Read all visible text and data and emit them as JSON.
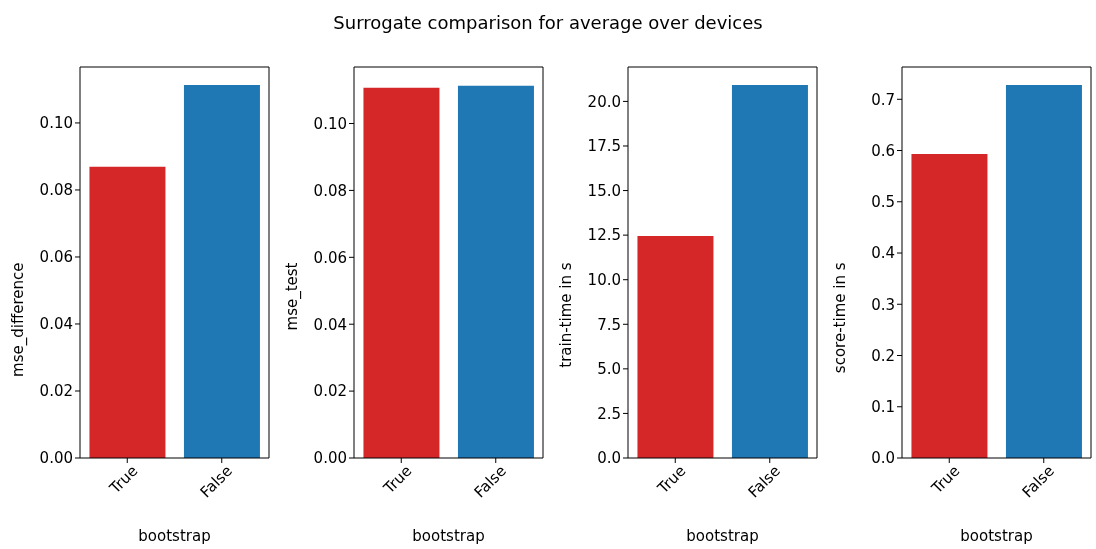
{
  "chart_data": [
    {
      "type": "bar",
      "categories": [
        "True",
        "False"
      ],
      "values": [
        0.0869,
        0.1113
      ],
      "colors": [
        "#d62728",
        "#1f77b4"
      ],
      "xlabel": "bootstrap",
      "ylabel": "mse_difference",
      "ylim": [
        0,
        0.1167
      ],
      "yticks": [
        {
          "value": 0,
          "label": "0.00"
        },
        {
          "value": 0.02,
          "label": "0.02"
        },
        {
          "value": 0.04,
          "label": "0.04"
        },
        {
          "value": 0.06,
          "label": "0.06"
        },
        {
          "value": 0.08,
          "label": "0.08"
        },
        {
          "value": 0.1,
          "label": "0.10"
        }
      ]
    },
    {
      "type": "bar",
      "title": "Surrogate comparison for average over devices",
      "categories": [
        "True",
        "False"
      ],
      "values": [
        0.1107,
        0.1113
      ],
      "colors": [
        "#d62728",
        "#1f77b4"
      ],
      "xlabel": "bootstrap",
      "ylabel": "mse_test",
      "ylim": [
        0,
        0.1169
      ],
      "yticks": [
        {
          "value": 0,
          "label": "0.00"
        },
        {
          "value": 0.02,
          "label": "0.02"
        },
        {
          "value": 0.04,
          "label": "0.04"
        },
        {
          "value": 0.06,
          "label": "0.06"
        },
        {
          "value": 0.08,
          "label": "0.08"
        },
        {
          "value": 0.1,
          "label": "0.10"
        }
      ]
    },
    {
      "type": "bar",
      "categories": [
        "True",
        "False"
      ],
      "values": [
        12.45,
        20.92
      ],
      "colors": [
        "#d62728",
        "#1f77b4"
      ],
      "xlabel": "bootstrap",
      "ylabel": "train-time in s",
      "ylim": [
        0,
        21.93
      ],
      "yticks": [
        {
          "value": 0,
          "label": "0.0"
        },
        2.5,
        {
          "value": 5,
          "label": "5.0"
        },
        7.5,
        {
          "value": 10,
          "label": "10.0"
        },
        12.5,
        {
          "value": 15,
          "label": "15.0"
        },
        17.5,
        {
          "value": 20,
          "label": "20.0"
        }
      ]
    },
    {
      "type": "bar",
      "categories": [
        "True",
        "False"
      ],
      "values": [
        0.593,
        0.728
      ],
      "colors": [
        "#d62728",
        "#1f77b4"
      ],
      "xlabel": "bootstrap",
      "ylabel": "score-time in s",
      "ylim": [
        0,
        0.763
      ],
      "yticks": [
        {
          "value": 0,
          "label": "0.0"
        },
        0.1,
        0.2,
        0.3,
        0.4,
        0.5,
        0.6,
        0.7
      ]
    }
  ]
}
